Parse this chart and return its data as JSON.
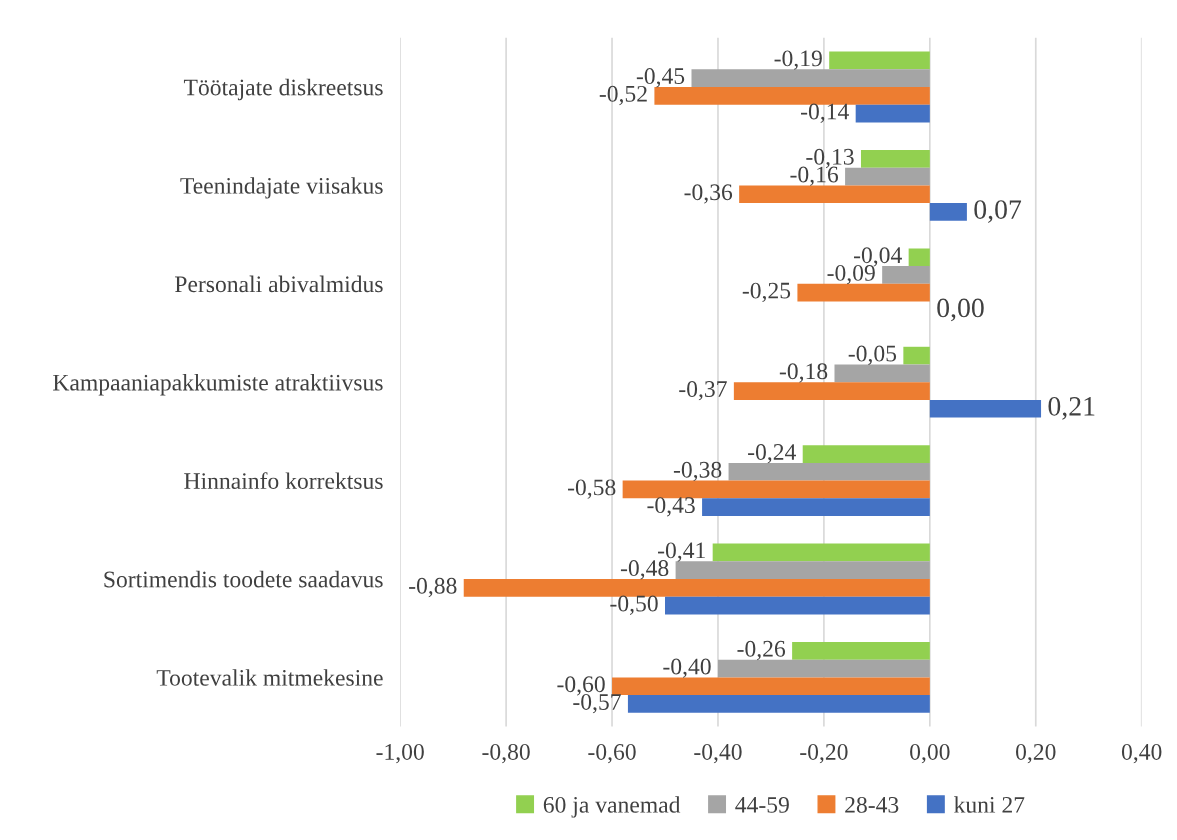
{
  "chart_data": {
    "type": "bar",
    "orientation": "horizontal",
    "categories": [
      "Töötajate diskreetsus",
      "Teenindajate viisakus",
      "Personali abivalmidus",
      "Kampaaniapakkumiste atraktiivsus",
      "Hinnainfo korrektsus",
      "Sortimendis toodete saadavus",
      "Tootevalik mitmekesine"
    ],
    "series": [
      {
        "name": "60 ja vanemad",
        "color": "#92d050",
        "values": [
          -0.19,
          -0.13,
          -0.04,
          -0.05,
          -0.24,
          -0.41,
          -0.26
        ],
        "value_labels": [
          "-0,19",
          "-0,13",
          "-0,04",
          "-0,05",
          "-0,24",
          "-0,41",
          "-0,26"
        ]
      },
      {
        "name": "44-59",
        "color": "#a5a5a5",
        "values": [
          -0.45,
          -0.16,
          -0.09,
          -0.18,
          -0.38,
          -0.48,
          -0.4
        ],
        "value_labels": [
          "-0,45",
          "-0,16",
          "-0,09",
          "-0,18",
          "-0,38",
          "-0,48",
          "-0,40"
        ]
      },
      {
        "name": "28-43",
        "color": "#ed7d31",
        "values": [
          -0.52,
          -0.36,
          -0.25,
          -0.37,
          -0.58,
          -0.88,
          -0.6
        ],
        "value_labels": [
          "-0,52",
          "-0,36",
          "-0,25",
          "-0,37",
          "-0,58",
          "-0,88",
          "-0,60"
        ]
      },
      {
        "name": "kuni 27",
        "color": "#4472c4",
        "values": [
          -0.14,
          0.07,
          0.0,
          0.21,
          -0.43,
          -0.5,
          -0.57
        ],
        "value_labels": [
          "-0,14",
          "0,07",
          "0,00",
          "0,21",
          "-0,43",
          "-0,50",
          "-0,57"
        ]
      }
    ],
    "xlim": [
      -1.0,
      0.4
    ],
    "xticks": [
      {
        "value": -1.0,
        "label": "-1,00"
      },
      {
        "value": -0.8,
        "label": "-0,80"
      },
      {
        "value": -0.6,
        "label": "-0,60"
      },
      {
        "value": -0.4,
        "label": "-0,40"
      },
      {
        "value": -0.2,
        "label": "-0,20"
      },
      {
        "value": 0.0,
        "label": "0,00"
      },
      {
        "value": 0.2,
        "label": "0,20"
      },
      {
        "value": 0.4,
        "label": "0,40"
      }
    ],
    "grid": "x",
    "legend": "bottom"
  }
}
